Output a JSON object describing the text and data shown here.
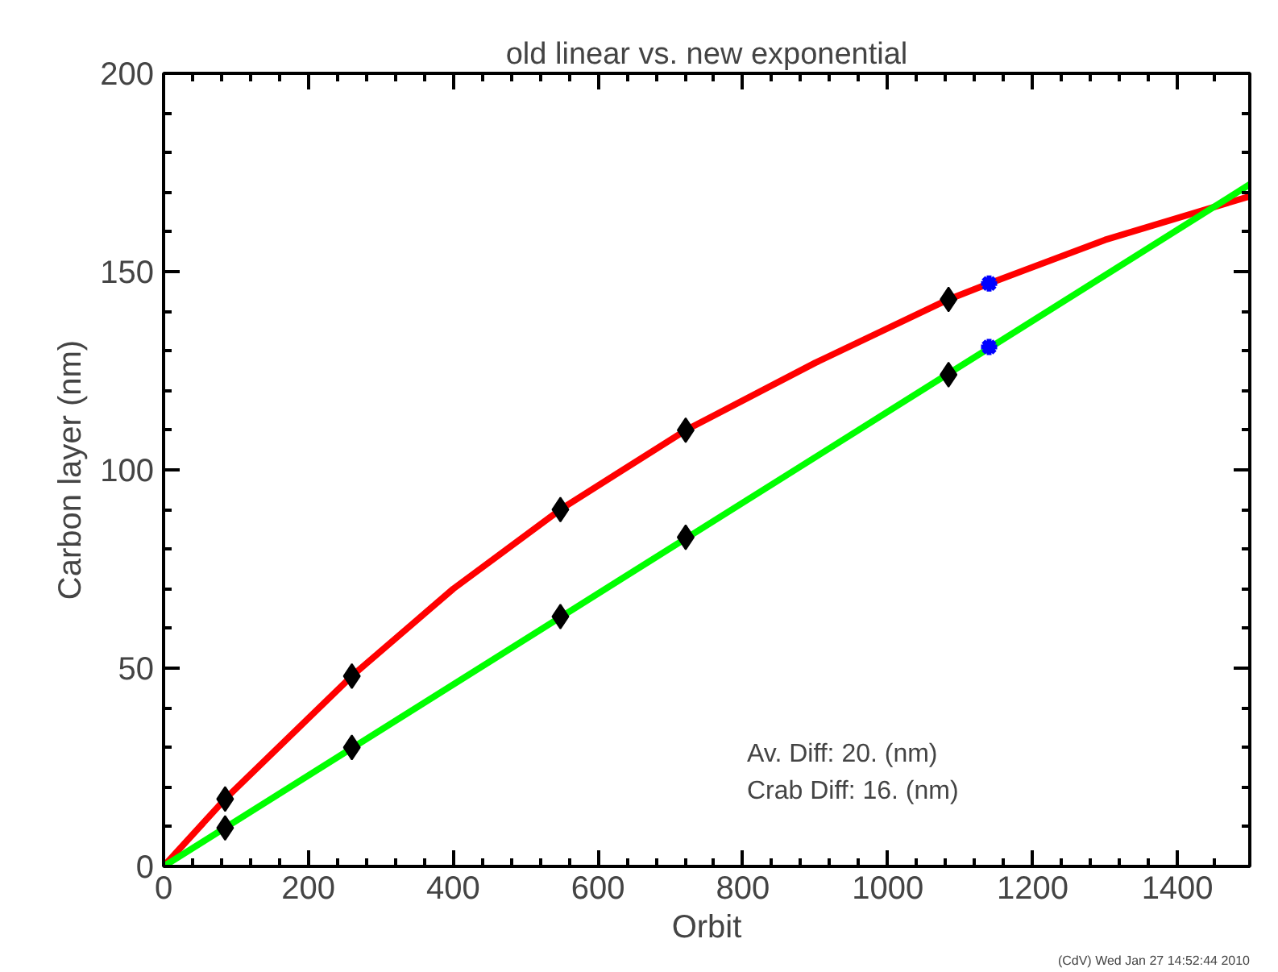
{
  "chart_data": {
    "type": "line",
    "title": "old linear vs. new exponential",
    "xlabel": "Orbit",
    "ylabel": "Carbon layer (nm)",
    "xlim": [
      0,
      1500
    ],
    "xticks": [
      0,
      200,
      400,
      600,
      800,
      1000,
      1200,
      1400
    ],
    "ylim": [
      0,
      200
    ],
    "yticks": [
      0,
      50,
      100,
      150,
      200
    ],
    "grid": false,
    "legend": false,
    "series": [
      {
        "type": "line",
        "color": "#ff0000",
        "x": [
          0,
          85,
          260,
          400,
          548,
          721,
          900,
          1084,
          1140,
          1300,
          1500
        ],
        "values": [
          0,
          17,
          48,
          70,
          90,
          110,
          127,
          143,
          147,
          158,
          169
        ]
      },
      {
        "type": "line",
        "color": "#00ff00",
        "x": [
          0,
          1500
        ],
        "values": [
          0,
          172
        ]
      },
      {
        "type": "scatter",
        "marker": "diamond",
        "color": "#000000",
        "x": [
          85,
          260,
          548,
          721,
          1084
        ],
        "values": [
          17,
          48,
          90,
          110,
          143
        ]
      },
      {
        "type": "scatter",
        "marker": "diamond",
        "color": "#000000",
        "x": [
          85,
          260,
          548,
          721,
          1084
        ],
        "values": [
          9.7,
          30,
          63,
          83,
          124
        ]
      },
      {
        "type": "scatter",
        "marker": "cross",
        "color": "#0000ff",
        "x": [
          1140,
          1140
        ],
        "values": [
          147,
          131
        ]
      }
    ],
    "annotations": [
      "Av. Diff:  20. (nm)",
      "Crab Diff:  16. (nm)",
      "(CdV) Wed Jan 27 14:52:44 2010"
    ]
  }
}
